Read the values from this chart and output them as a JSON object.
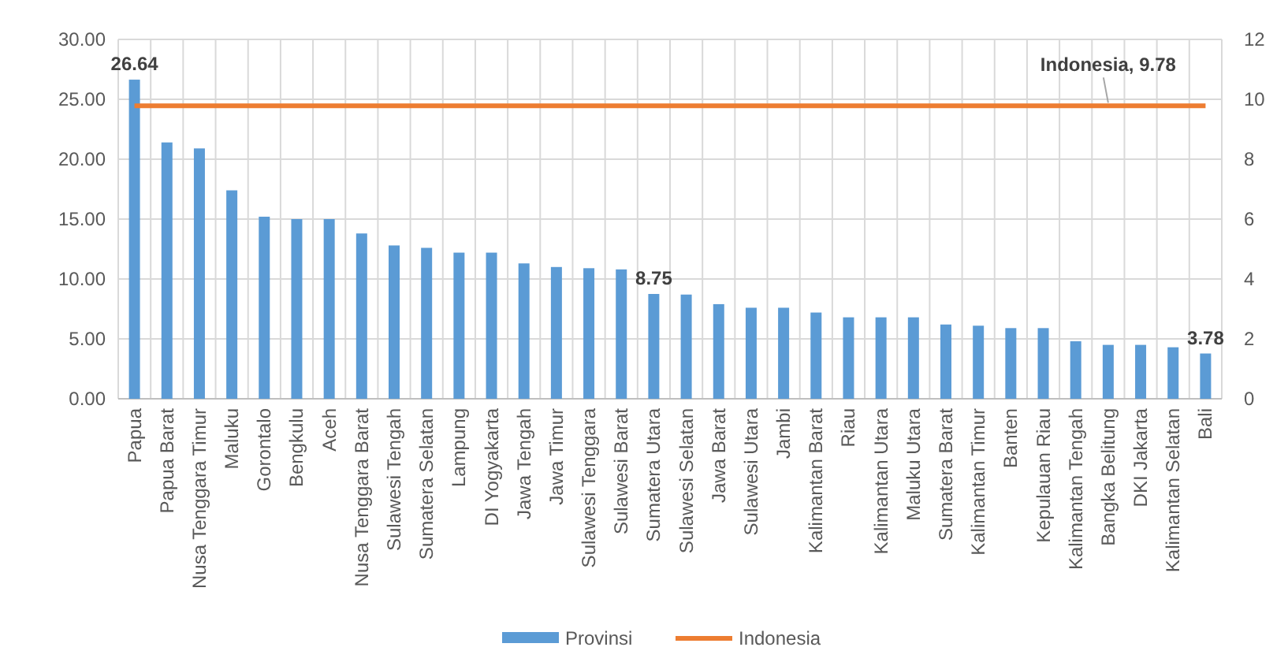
{
  "chart_data": {
    "type": "bar",
    "categories": [
      "Papua",
      "Papua Barat",
      "Nusa Tenggara Timur",
      "Maluku",
      "Gorontalo",
      "Bengkulu",
      "Aceh",
      "Nusa Tenggara Barat",
      "Sulawesi Tengah",
      "Sumatera Selatan",
      "Lampung",
      "DI Yogyakarta",
      "Jawa Tengah",
      "Jawa Timur",
      "Sulawesi Tenggara",
      "Sulawesi Barat",
      "Sumatera Utara",
      "Sulawesi Selatan",
      "Jawa Barat",
      "Sulawesi Utara",
      "Jambi",
      "Kalimantan Barat",
      "Riau",
      "Kalimantan Utara",
      "Maluku Utara",
      "Sumatera Barat",
      "Kalimantan Timur",
      "Banten",
      "Kepulauan Riau",
      "Kalimantan Tengah",
      "Bangka Belitung",
      "DKI Jakarta",
      "Kalimantan Selatan",
      "Bali"
    ],
    "series": [
      {
        "name": "Provinsi",
        "color": "#5b9bd5",
        "values": [
          26.64,
          21.4,
          20.9,
          17.4,
          15.2,
          15.0,
          15.0,
          13.8,
          12.8,
          12.6,
          12.2,
          12.2,
          11.3,
          11.0,
          10.9,
          10.8,
          8.75,
          8.7,
          7.9,
          7.6,
          7.6,
          7.2,
          6.8,
          6.8,
          6.8,
          6.2,
          6.1,
          5.9,
          5.9,
          4.8,
          4.5,
          4.5,
          4.3,
          3.78
        ],
        "value_labels": [
          "26.64",
          null,
          null,
          null,
          null,
          null,
          null,
          null,
          null,
          null,
          null,
          null,
          null,
          null,
          null,
          null,
          "8.75",
          null,
          null,
          null,
          null,
          null,
          null,
          null,
          null,
          null,
          null,
          null,
          null,
          null,
          null,
          null,
          null,
          "3.78"
        ]
      },
      {
        "name": "Indonesia",
        "type": "line",
        "axis": "y2",
        "color": "#ed7d31",
        "values": [
          9.78,
          9.78,
          9.78,
          9.78,
          9.78,
          9.78,
          9.78,
          9.78,
          9.78,
          9.78,
          9.78,
          9.78,
          9.78,
          9.78,
          9.78,
          9.78,
          9.78,
          9.78,
          9.78,
          9.78,
          9.78,
          9.78,
          9.78,
          9.78,
          9.78,
          9.78,
          9.78,
          9.78,
          9.78,
          9.78,
          9.78,
          9.78,
          9.78,
          9.78
        ],
        "value_labels": [
          null,
          null,
          null,
          null,
          null,
          null,
          null,
          null,
          null,
          null,
          null,
          null,
          null,
          null,
          null,
          null,
          null,
          null,
          null,
          null,
          null,
          null,
          null,
          null,
          null,
          null,
          null,
          null,
          null,
          null,
          "Indonesia, 9.78",
          null,
          null,
          null
        ]
      }
    ],
    "ylim": [
      0,
      30
    ],
    "yticks": [
      {
        "value": 0,
        "label": "0.00"
      },
      {
        "value": 5,
        "label": "5.00"
      },
      {
        "value": 10,
        "label": "10.00"
      },
      {
        "value": 15,
        "label": "15.00"
      },
      {
        "value": 20,
        "label": "20.00"
      },
      {
        "value": 25,
        "label": "25.00"
      },
      {
        "value": 30,
        "label": "30.00"
      }
    ],
    "y2lim": [
      0,
      12
    ],
    "y2ticks": [
      0,
      2,
      4,
      6,
      8,
      10,
      12
    ],
    "grid": true,
    "legend": "bottom"
  }
}
